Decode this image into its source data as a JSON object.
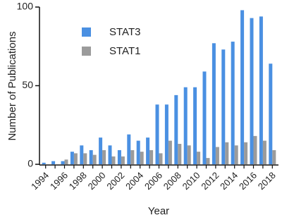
{
  "chart_data": {
    "type": "bar",
    "x_label": "Year",
    "y_label": "Number of Publications",
    "categories": [
      "1994",
      null,
      "1996",
      null,
      "1998",
      null,
      "2000",
      null,
      "2002",
      null,
      "2004",
      null,
      "2006",
      null,
      "2008",
      null,
      "2010",
      null,
      "2012",
      null,
      "2014",
      null,
      "2016",
      null,
      "2018"
    ],
    "series": [
      {
        "name": "STAT3",
        "color": "#4a90e2",
        "values": [
          1,
          2,
          2,
          8,
          12,
          9,
          17,
          12,
          9,
          19,
          15,
          17,
          38,
          38,
          44,
          49,
          49,
          59,
          77,
          73,
          78,
          98,
          93,
          94,
          64
        ]
      },
      {
        "name": "STAT1",
        "color": "#9b9b9b",
        "values": [
          0,
          0,
          3,
          7,
          7,
          6,
          9,
          5,
          5,
          9,
          8,
          9,
          7,
          15,
          13,
          12,
          8,
          4,
          11,
          14,
          12,
          14,
          18,
          15,
          9
        ]
      }
    ],
    "ylim": [
      0,
      100
    ],
    "yticks": [
      0,
      50,
      100
    ],
    "legend": "upper-left"
  }
}
